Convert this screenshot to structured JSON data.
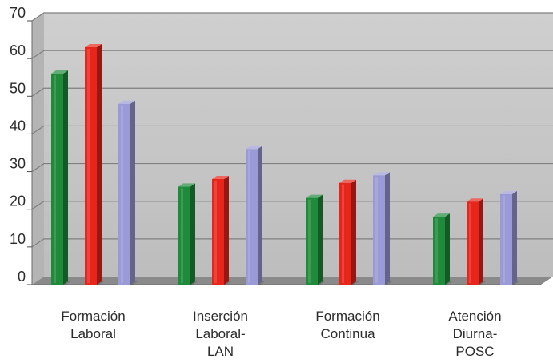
{
  "chart_data": {
    "type": "bar",
    "title": "",
    "xlabel": "",
    "ylabel": "",
    "ylim": [
      0,
      70
    ],
    "yticks": [
      0,
      10,
      20,
      30,
      40,
      50,
      60,
      70
    ],
    "grid": true,
    "three_d": true,
    "categories": [
      [
        "Formación",
        "Laboral"
      ],
      [
        "Inserción",
        "Laboral-",
        "LAN"
      ],
      [
        "Formación",
        "Continua"
      ],
      [
        "Atención",
        "Diurna-",
        "POSC"
      ]
    ],
    "series": [
      {
        "values": [
          56,
          26,
          23,
          18
        ],
        "color": "#1f8a3a"
      },
      {
        "values": [
          63,
          28,
          27,
          22
        ],
        "color": "#e8251b"
      },
      {
        "values": [
          48,
          36,
          29,
          24
        ],
        "color": "#9a9ad6"
      }
    ],
    "colors": {
      "wall": "#c6c6c6",
      "floor": "#8a8a8a",
      "gridline": "#7f7f7f"
    }
  }
}
